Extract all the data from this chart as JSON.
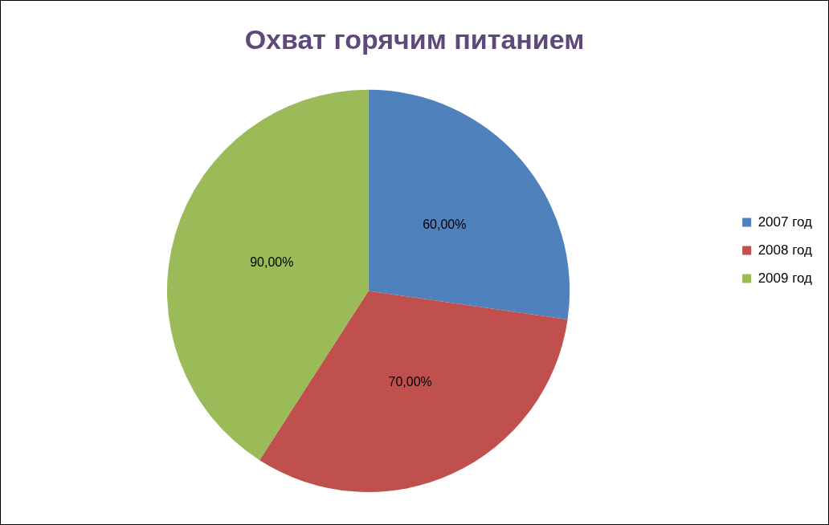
{
  "chart_data": {
    "type": "pie",
    "title": "Охват горячим питанием",
    "categories": [
      "2007 год",
      "2008 год",
      "2009 год"
    ],
    "values": [
      60,
      70,
      90
    ],
    "colors": [
      "#4f81bd",
      "#c0504d",
      "#9bbb59"
    ],
    "value_labels": [
      "60,00%",
      "70,00%",
      "90,00%"
    ],
    "legend": "right"
  }
}
